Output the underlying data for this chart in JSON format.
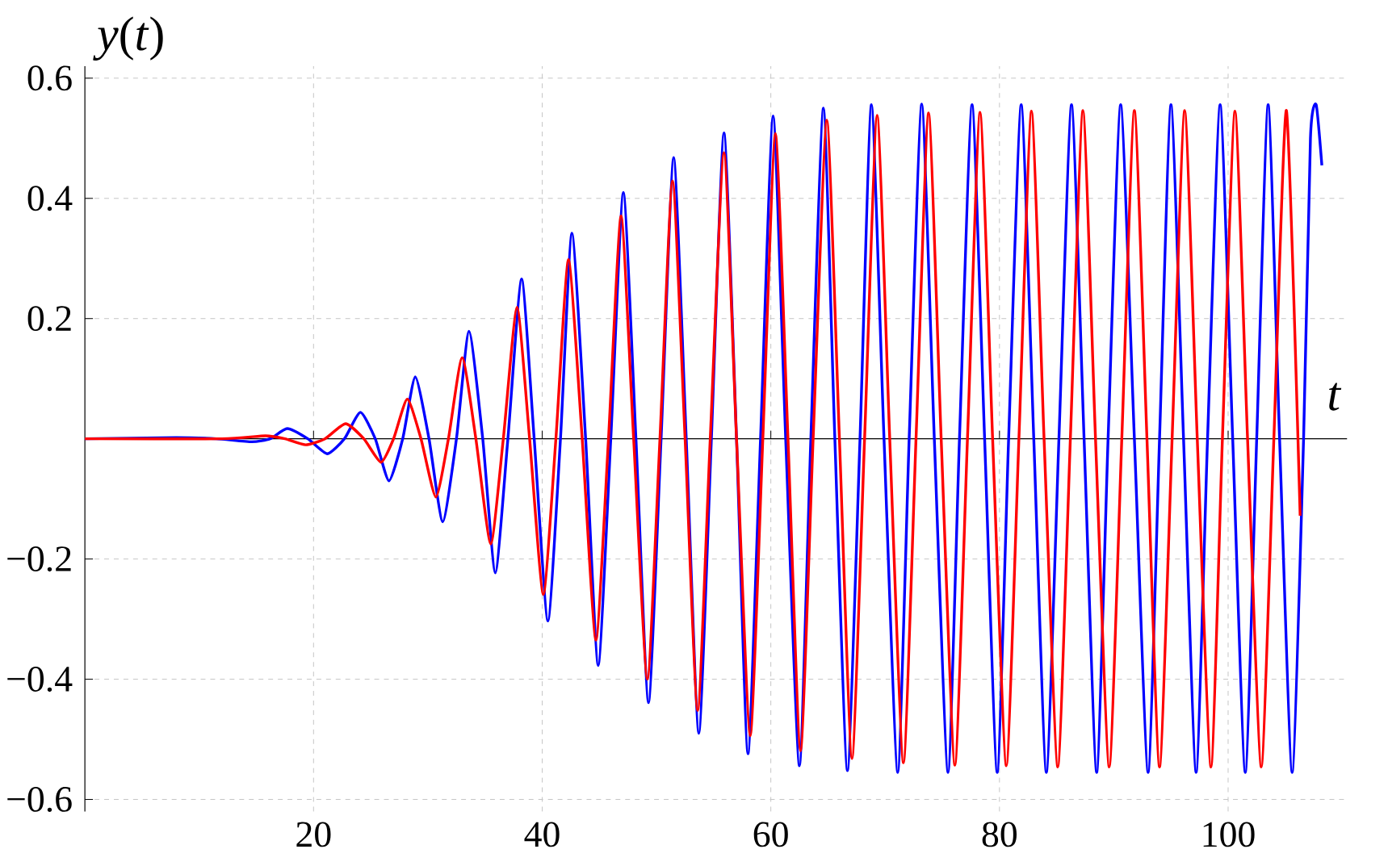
{
  "chart_data": {
    "type": "line",
    "xlabel": "*t*",
    "ylabel": "*y*(*t*)",
    "xlim": [
      0,
      110.4
    ],
    "ylim": [
      -0.62,
      0.62
    ],
    "xticks": [
      20,
      40,
      60,
      80,
      100
    ],
    "yticks": [
      {
        "value": -0.6,
        "label": "−0.6"
      },
      {
        "value": -0.4,
        "label": "−0.4"
      },
      {
        "value": -0.2,
        "label": "−0.2"
      },
      0.2,
      0.4,
      0.6
    ],
    "grid": true,
    "series": [
      {
        "color": "#0000ff",
        "x": [
          0,
          8,
          11.5,
          14.6,
          16.2,
          17.7,
          19.5,
          21.2,
          22.7,
          24.1,
          25.4,
          26.6,
          27.8,
          28.9,
          30.1,
          31.3,
          32.5,
          33.6,
          34.8,
          35.9,
          37.0,
          38.2,
          39.3,
          40.5,
          41.6,
          42.6,
          43.8,
          44.9,
          46.0,
          47.1,
          48.2,
          49.3,
          50.4,
          51.5,
          52.6,
          53.7,
          54.8,
          55.9,
          57.0,
          58.0,
          59.1,
          60.2,
          61.3,
          62.5,
          63.5,
          64.6,
          65.6,
          66.7,
          67.8,
          68.8,
          69.9,
          71.1,
          72.1,
          73.2,
          74.3,
          75.5,
          76.5,
          77.6,
          78.7,
          79.8,
          80.8,
          81.9,
          83.0,
          84.1,
          85.2,
          86.3,
          87.4,
          88.5,
          89.5,
          90.6,
          91.8,
          93.0,
          94.0,
          95.0,
          96.1,
          97.2,
          98.2,
          99.3,
          100.4,
          101.5,
          102.5,
          103.5,
          104.5,
          105.6,
          106.6,
          107.2,
          107.7,
          108.2
        ],
        "values": [
          0,
          0.002,
          0,
          -0.005,
          0,
          0.017,
          0,
          -0.025,
          0,
          0.044,
          0,
          -0.07,
          0,
          0.103,
          0,
          -0.138,
          0,
          0.179,
          0,
          -0.223,
          0,
          0.266,
          0,
          -0.303,
          0,
          0.342,
          0,
          -0.377,
          0,
          0.41,
          0,
          -0.439,
          0,
          0.468,
          0,
          -0.49,
          0,
          0.509,
          0,
          -0.524,
          0,
          0.537,
          0,
          -0.544,
          0,
          0.55,
          0,
          -0.552,
          0,
          0.556,
          0,
          -0.555,
          0,
          0.557,
          0,
          -0.555,
          0,
          0.556,
          0,
          -0.555,
          0,
          0.556,
          0,
          -0.555,
          0,
          0.556,
          0,
          -0.555,
          0,
          0.556,
          0,
          -0.555,
          0,
          0.556,
          0,
          -0.555,
          0,
          0.556,
          0,
          -0.555,
          0,
          0.556,
          0,
          -0.555,
          0,
          0.5,
          0.556,
          0.455
        ]
      },
      {
        "color": "#ff0000",
        "x": [
          0,
          12,
          15.8,
          17.5,
          19.3,
          21.0,
          22.8,
          24.4,
          25.9,
          27.0,
          28.2,
          29.4,
          30.7,
          31.8,
          33.0,
          34.2,
          35.5,
          36.6,
          37.8,
          38.9,
          40.1,
          41.2,
          42.3,
          43.5,
          44.7,
          45.8,
          46.9,
          48.0,
          49.2,
          50.3,
          51.4,
          52.5,
          53.6,
          54.7,
          55.9,
          57.0,
          58.2,
          59.3,
          60.4,
          61.5,
          62.6,
          63.7,
          64.9,
          66.0,
          67.1,
          68.2,
          69.3,
          70.4,
          71.6,
          72.7,
          73.8,
          74.9,
          76.1,
          77.2,
          78.3,
          79.4,
          80.6,
          81.7,
          82.8,
          83.9,
          85.1,
          86.2,
          87.3,
          88.4,
          89.6,
          90.7,
          91.8,
          92.9,
          94.0,
          95.1,
          96.2,
          97.3,
          98.5,
          99.5,
          100.6,
          101.7,
          102.9,
          104.0,
          105.1,
          106.3
        ],
        "values": [
          0,
          0,
          0.005,
          0,
          -0.01,
          0,
          0.025,
          0,
          -0.039,
          0,
          0.066,
          0,
          -0.097,
          0,
          0.135,
          0,
          -0.175,
          0,
          0.219,
          0,
          -0.259,
          0,
          0.298,
          0,
          -0.335,
          0,
          0.371,
          0,
          -0.4,
          0,
          0.429,
          0,
          -0.452,
          0,
          0.476,
          0,
          -0.494,
          0,
          0.508,
          0,
          -0.519,
          0,
          0.53,
          0,
          -0.532,
          0,
          0.538,
          0,
          -0.539,
          0,
          0.542,
          0,
          -0.543,
          0,
          0.543,
          0,
          -0.544,
          0,
          0.545,
          0,
          -0.546,
          0,
          0.546,
          0,
          -0.546,
          0,
          0.546,
          0,
          -0.546,
          0,
          0.546,
          0,
          -0.546,
          0,
          0.545,
          0,
          -0.546,
          0,
          0.546,
          -0.128
        ]
      }
    ]
  }
}
